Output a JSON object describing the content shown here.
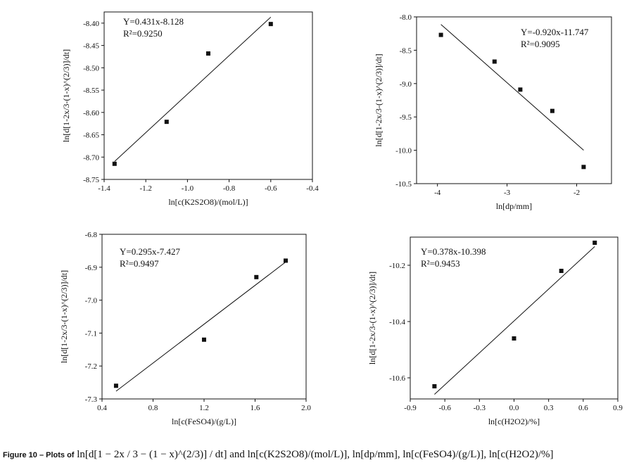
{
  "chart_data": [
    {
      "type": "scatter",
      "ylabel": "ln[d[1-2x/3-(1-x)^(2/3)]/dt]",
      "xlabel": "ln[c(K2S2O8)/(mol/L)]",
      "xlim": [
        -1.4,
        -0.4
      ],
      "ylim": [
        -8.75,
        -8.375
      ],
      "xticks": [
        "-1.4",
        "-1.2",
        "-1.0",
        "-0.8",
        "-0.6",
        "-0.4"
      ],
      "yticks": [
        "-8.75",
        "-8.70",
        "-8.65",
        "-8.60",
        "-8.55",
        "-8.50",
        "-8.45",
        "-8.40"
      ],
      "x": [
        -1.35,
        -1.1,
        -0.9,
        -0.6
      ],
      "y": [
        -8.715,
        -8.621,
        -8.468,
        -8.402
      ],
      "fit": {
        "slope": 0.431,
        "intercept": -8.128,
        "x_from": -1.35,
        "x_to": -0.6
      },
      "annotations": [
        "Y=0.431x-8.128",
        "R²=0.9250"
      ]
    },
    {
      "type": "scatter",
      "ylabel": "ln[d[1-2x/3-(1-x)^(2/3)]/dt]",
      "xlabel": "ln[dp/mm]",
      "xlim": [
        -4.3,
        -1.5
      ],
      "ylim": [
        -10.5,
        -8.0
      ],
      "xticks": [
        "-4",
        "-3",
        "-2"
      ],
      "xtick_values": [
        -4,
        -3,
        -2
      ],
      "yticks": [
        "-8.0",
        "-8.5",
        "-9.0",
        "-9.5",
        "-10.0",
        "-10.5"
      ],
      "x": [
        -3.95,
        -3.18,
        -2.81,
        -2.35,
        -1.9
      ],
      "y": [
        -8.27,
        -8.67,
        -9.09,
        -9.41,
        -10.25
      ],
      "fit": {
        "slope": -0.92,
        "intercept": -11.747,
        "x_from": -3.95,
        "x_to": -1.9
      },
      "annotations": [
        "Y=-0.920x-11.747",
        "R²=0.9095"
      ]
    },
    {
      "type": "scatter",
      "ylabel": "ln[d[1-2x/3-(1-x)^(2/3)]/dt]",
      "xlabel": "ln[c(FeSO4)/(g/L)]",
      "xlim": [
        0.4,
        2.0
      ],
      "ylim": [
        -7.3,
        -6.8
      ],
      "xticks": [
        "0.4",
        "0.8",
        "1.2",
        "1.6",
        "2.0"
      ],
      "yticks": [
        "-7.3",
        "-7.2",
        "-7.1",
        "-7.0",
        "-6.9",
        "-6.8"
      ],
      "x": [
        0.51,
        1.2,
        1.61,
        1.84
      ],
      "y": [
        -7.26,
        -7.12,
        -6.93,
        -6.88
      ],
      "fit": {
        "slope": 0.295,
        "intercept": -7.427,
        "x_from": 0.51,
        "x_to": 1.84
      },
      "annotations": [
        "Y=0.295x-7.427",
        "R²=0.9497"
      ]
    },
    {
      "type": "scatter",
      "ylabel": "ln[d[1-2x/3-(1-x)^(2/3)]/dt]",
      "xlabel": "ln[c(H2O2)/%]",
      "xlim": [
        -0.9,
        0.9
      ],
      "ylim": [
        -10.675,
        -10.1
      ],
      "xticks": [
        "-0.9",
        "-0.6",
        "-0.3",
        "0.0",
        "0.3",
        "0.6",
        "0.9"
      ],
      "yticks": [
        "-10.6",
        "-10.4",
        "-10.2"
      ],
      "ytick_values": [
        -10.6,
        -10.4,
        -10.2
      ],
      "x": [
        -0.69,
        0.0,
        0.41,
        0.7
      ],
      "y": [
        -10.63,
        -10.46,
        -10.22,
        -10.12
      ],
      "fit": {
        "slope": 0.378,
        "intercept": -10.398,
        "x_from": -0.69,
        "x_to": 0.7
      },
      "annotations": [
        "Y=0.378x-10.398",
        "R²=0.9453"
      ]
    }
  ],
  "caption": {
    "lead": "Figure 10 – Plots of",
    "expr": "ln[d[1 − 2x / 3 − (1 − x)^(2/3)] / dt]",
    "and": "and",
    "items": "ln[c(K2S2O8)/(mol/L)], ln[dp/mm], ln[c(FeSO4)/(g/L)], ln[c(H2O2)/%]"
  }
}
